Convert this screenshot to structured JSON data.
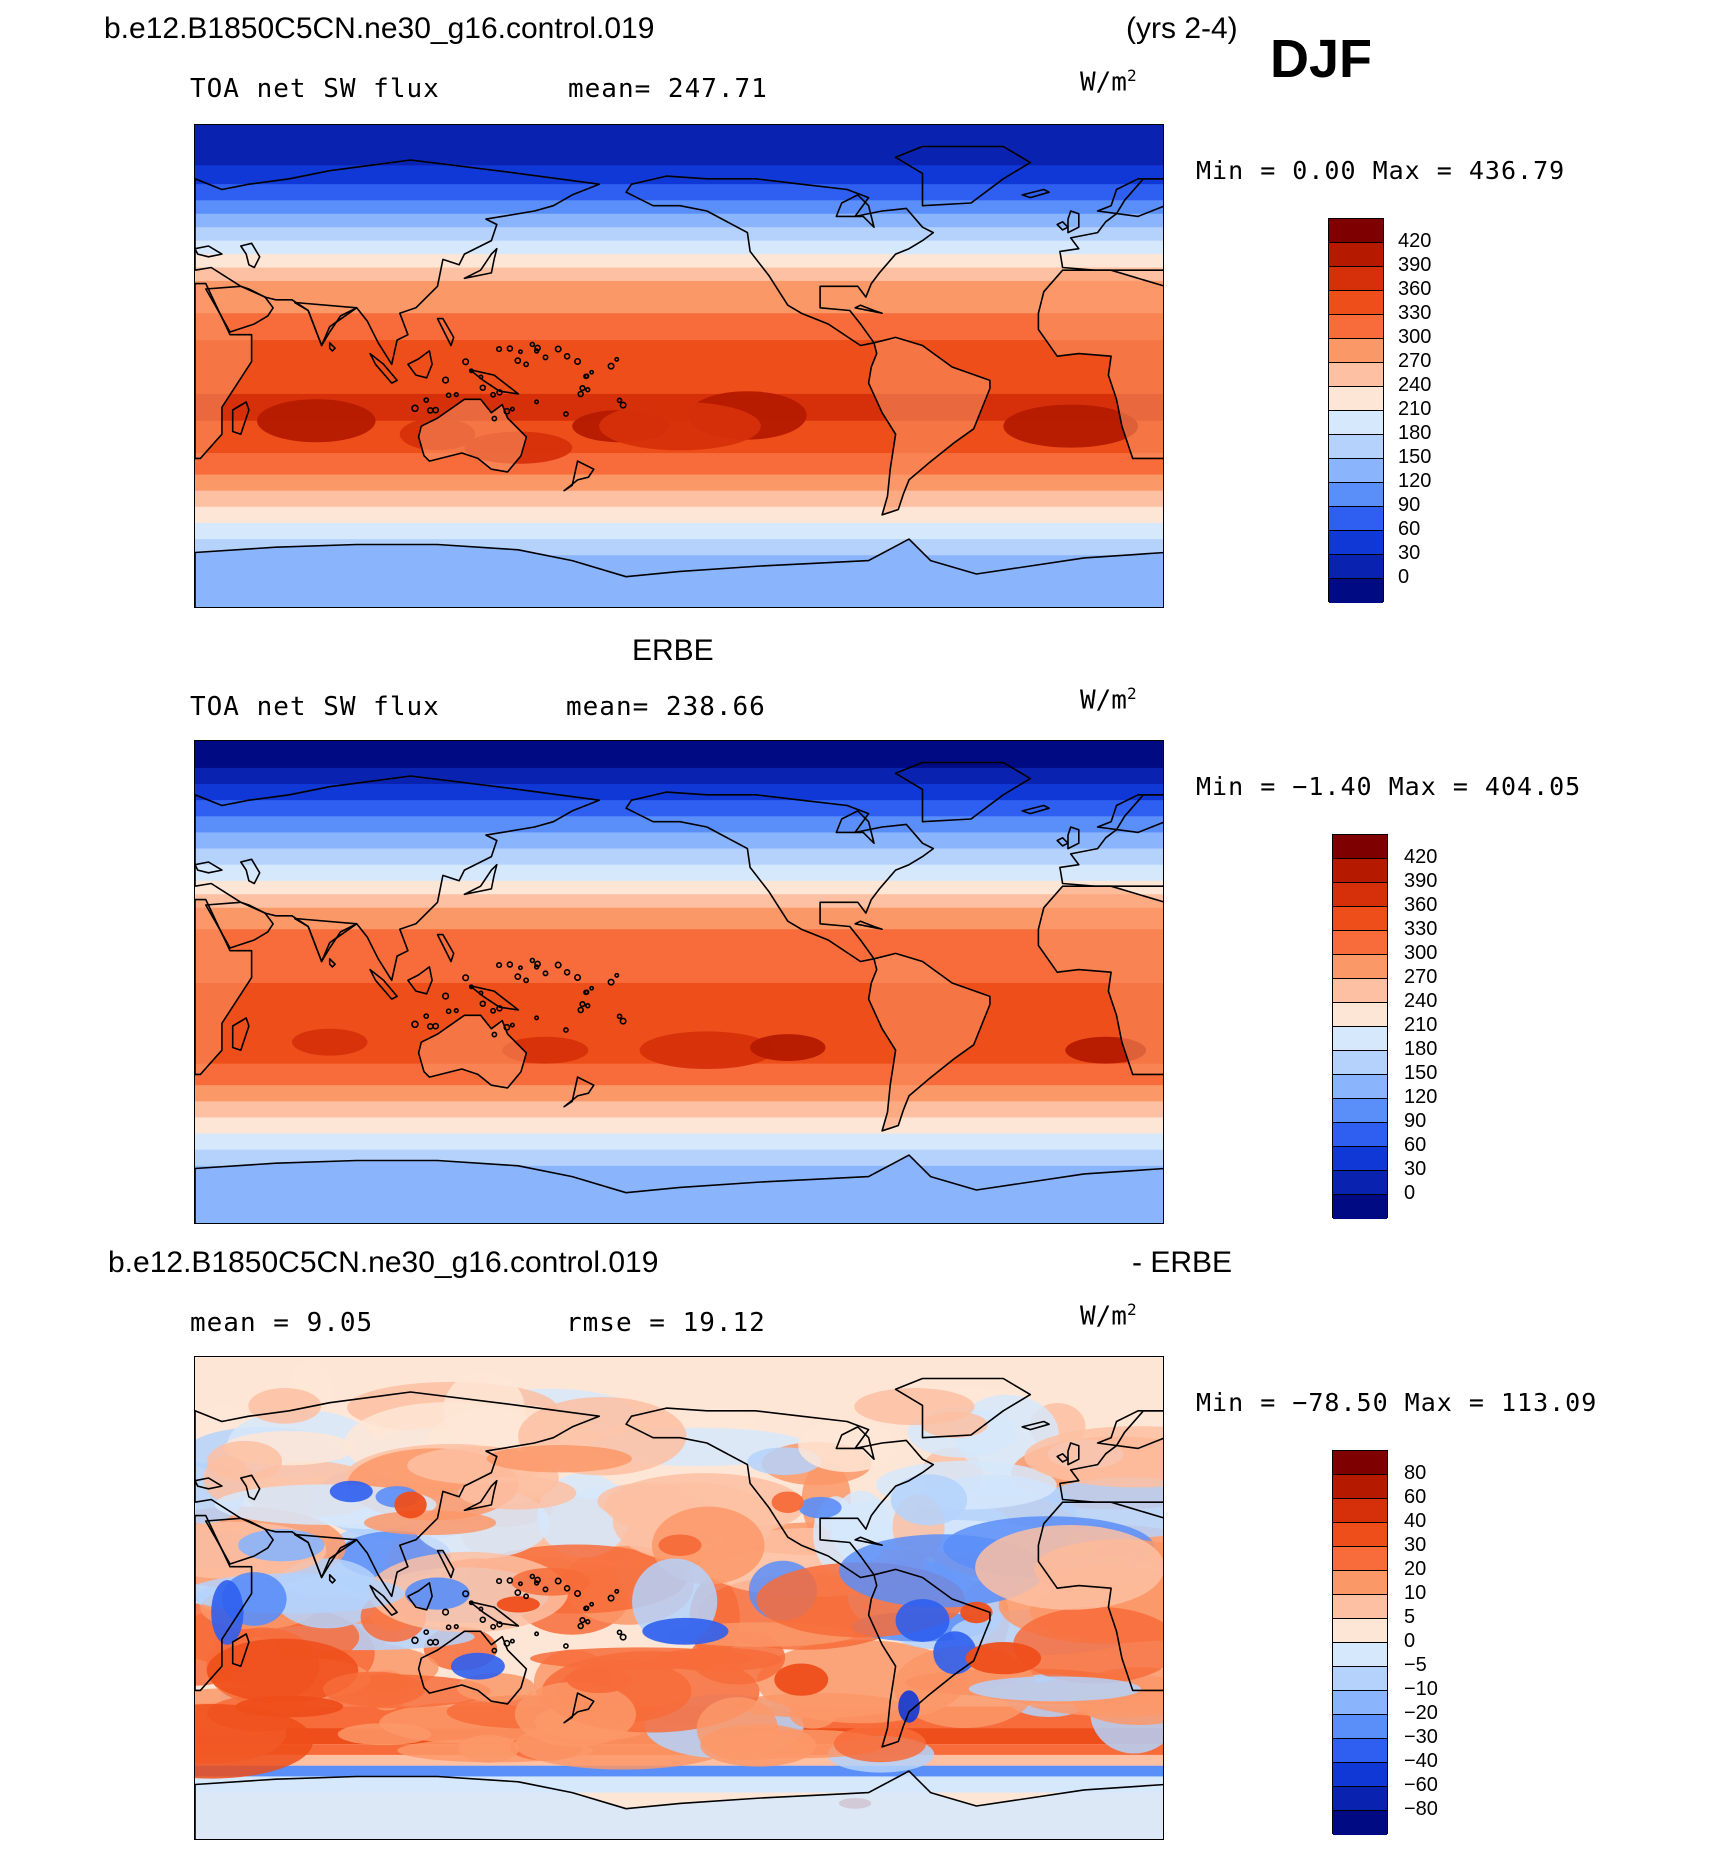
{
  "header": {
    "case_name": "b.e12.B1850C5CN.ne30_g16.control.019",
    "years": "(yrs 2-4)",
    "season": "DJF"
  },
  "panels": [
    {
      "id": "model",
      "section_title": "",
      "left_label": "TOA net SW flux",
      "mid_label": "mean= 247.71",
      "units": "W/m",
      "units_sup": "2",
      "minmax": "Min =    0.00 Max = 436.79",
      "colorbar_labels": [
        "420",
        "390",
        "360",
        "330",
        "300",
        "270",
        "240",
        "210",
        "180",
        "150",
        "120",
        "90",
        "60",
        "30",
        "0"
      ],
      "field": {
        "min": 0.0,
        "max": 436.79,
        "mean": 247.71
      }
    },
    {
      "id": "obs",
      "section_title": "ERBE",
      "left_label": "TOA net SW flux",
      "mid_label": "mean= 238.66",
      "units": "W/m",
      "units_sup": "2",
      "minmax": "Min =  −1.40 Max = 404.05",
      "colorbar_labels": [
        "420",
        "390",
        "360",
        "330",
        "300",
        "270",
        "240",
        "210",
        "180",
        "150",
        "120",
        "90",
        "60",
        "30",
        "0"
      ],
      "field": {
        "min": -1.4,
        "max": 404.05,
        "mean": 238.66
      }
    },
    {
      "id": "diff",
      "section_title": "b.e12.B1850C5CN.ne30_g16.control.019",
      "section_title_right": "- ERBE",
      "left_label": "mean =   9.05",
      "mid_label": "rmse =  19.12",
      "units": "W/m",
      "units_sup": "2",
      "minmax": "Min = −78.50 Max = 113.09",
      "colorbar_labels": [
        "80",
        "60",
        "40",
        "30",
        "20",
        "10",
        "5",
        "0",
        "−5",
        "−10",
        "−20",
        "−30",
        "−40",
        "−60",
        "−80"
      ],
      "field": {
        "min": -78.5,
        "max": 113.09,
        "mean": 9.05,
        "rmse": 19.12
      }
    }
  ],
  "colors": {
    "palette_top_to_bottom": [
      "#7f0000",
      "#b51a00",
      "#d6300a",
      "#ee4e1a",
      "#f76c3a",
      "#fb9868",
      "#fdc0a2",
      "#fee6d6",
      "#d6e8fc",
      "#b4d2fc",
      "#8ab4fc",
      "#5a8ef8",
      "#2e5ff0",
      "#1038d6",
      "#0a22b0",
      "#000a82"
    ]
  }
}
